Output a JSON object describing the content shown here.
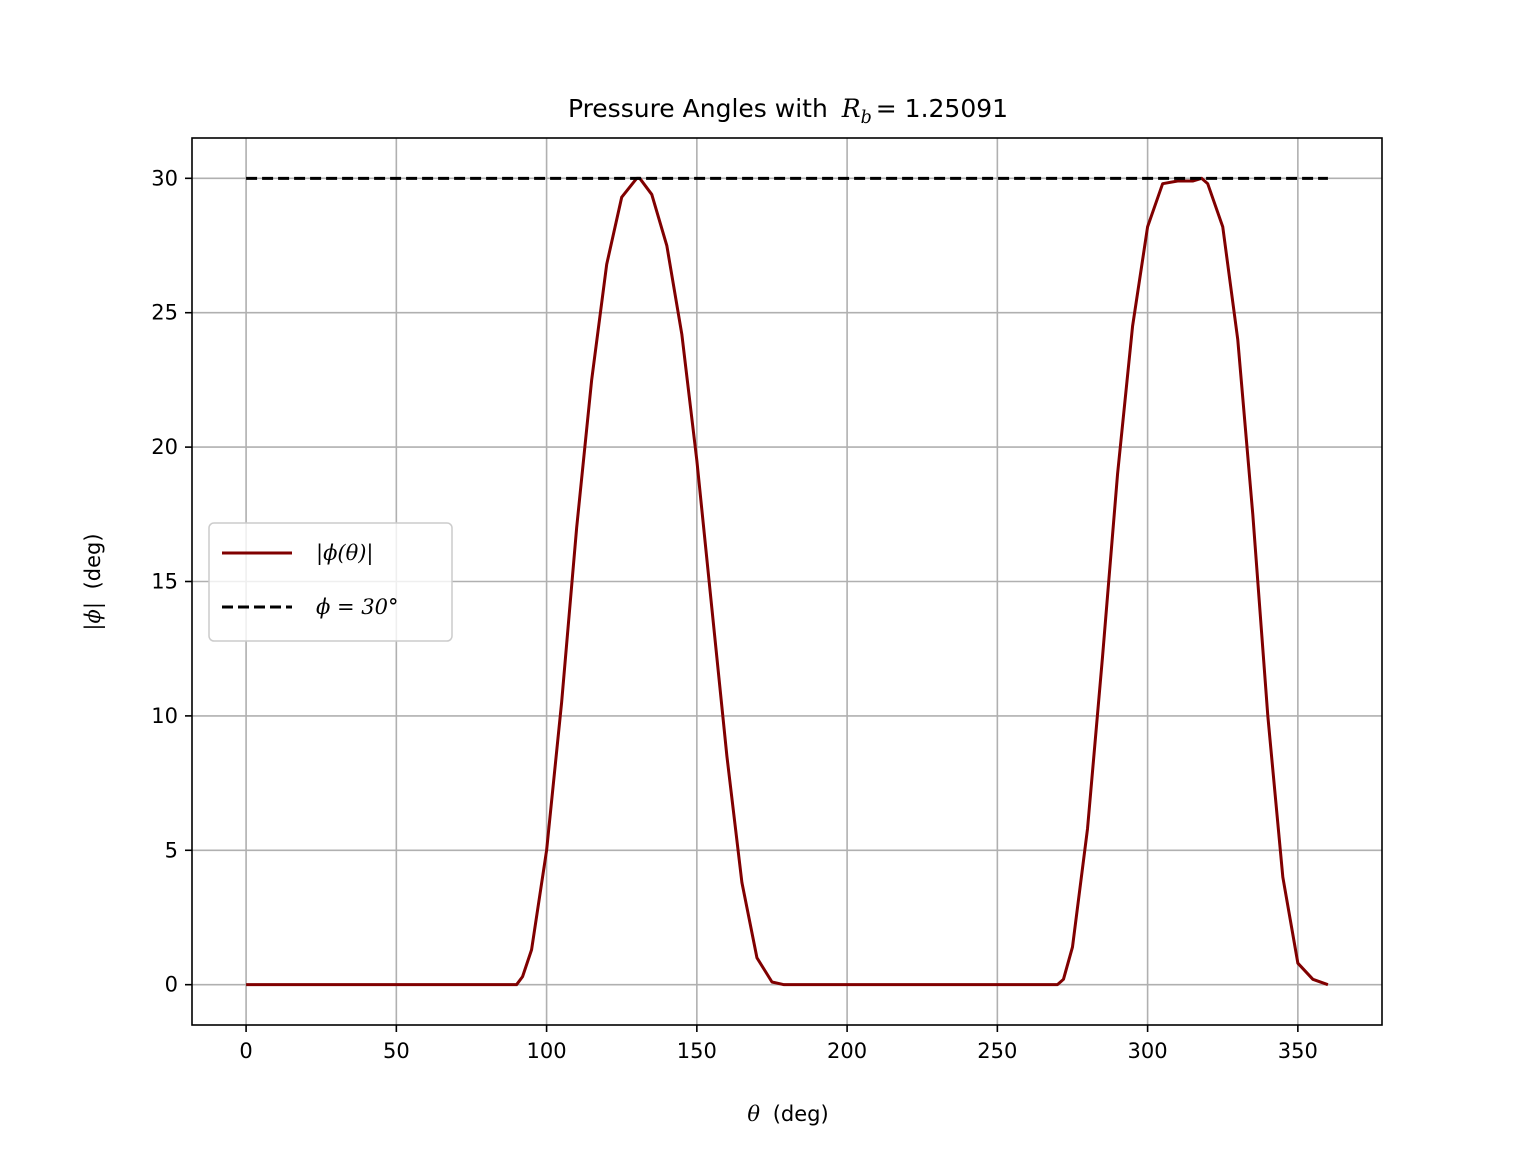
{
  "chart_data": {
    "type": "line",
    "title_prefix": "Pressure Angles with",
    "title_math_var": "R",
    "title_math_sub": "b",
    "title_math_rest": "= 1.25091",
    "xlabel_var": "θ",
    "xlabel_unit": "(deg)",
    "ylabel_var": "|ϕ|",
    "ylabel_unit": "(deg)",
    "xlim": [
      -18,
      378
    ],
    "ylim": [
      -1.5,
      31.5
    ],
    "xticks": [
      0,
      50,
      100,
      150,
      200,
      250,
      300,
      350
    ],
    "yticks": [
      0,
      5,
      10,
      15,
      20,
      25,
      30
    ],
    "grid": true,
    "legend_position": "center-left",
    "series": [
      {
        "name": "|ϕ(θ)|",
        "color": "#800000",
        "style": "solid",
        "x": [
          0,
          90,
          92,
          95,
          100,
          105,
          110,
          115,
          120,
          125,
          130,
          131,
          135,
          140,
          145,
          150,
          155,
          160,
          165,
          170,
          175,
          179,
          180,
          270,
          272,
          275,
          280,
          285,
          290,
          295,
          300,
          305,
          310,
          315,
          318,
          320,
          325,
          330,
          335,
          340,
          345,
          350,
          355,
          360
        ],
        "y": [
          0,
          0,
          0.3,
          1.3,
          5.0,
          10.5,
          17.0,
          22.5,
          26.8,
          29.3,
          30.0,
          30.0,
          29.4,
          27.5,
          24.2,
          19.5,
          14.0,
          8.5,
          3.8,
          1.0,
          0.1,
          0,
          0,
          0,
          0.2,
          1.4,
          5.8,
          12.2,
          19.0,
          24.5,
          28.2,
          29.8,
          29.9,
          29.9,
          30.0,
          29.8,
          28.2,
          24.0,
          17.5,
          10.0,
          4.0,
          0.8,
          0.2,
          0
        ]
      },
      {
        "name": "ϕ = 30°",
        "color": "#000000",
        "style": "dashed",
        "x": [
          0,
          360
        ],
        "y": [
          30,
          30
        ]
      }
    ]
  }
}
